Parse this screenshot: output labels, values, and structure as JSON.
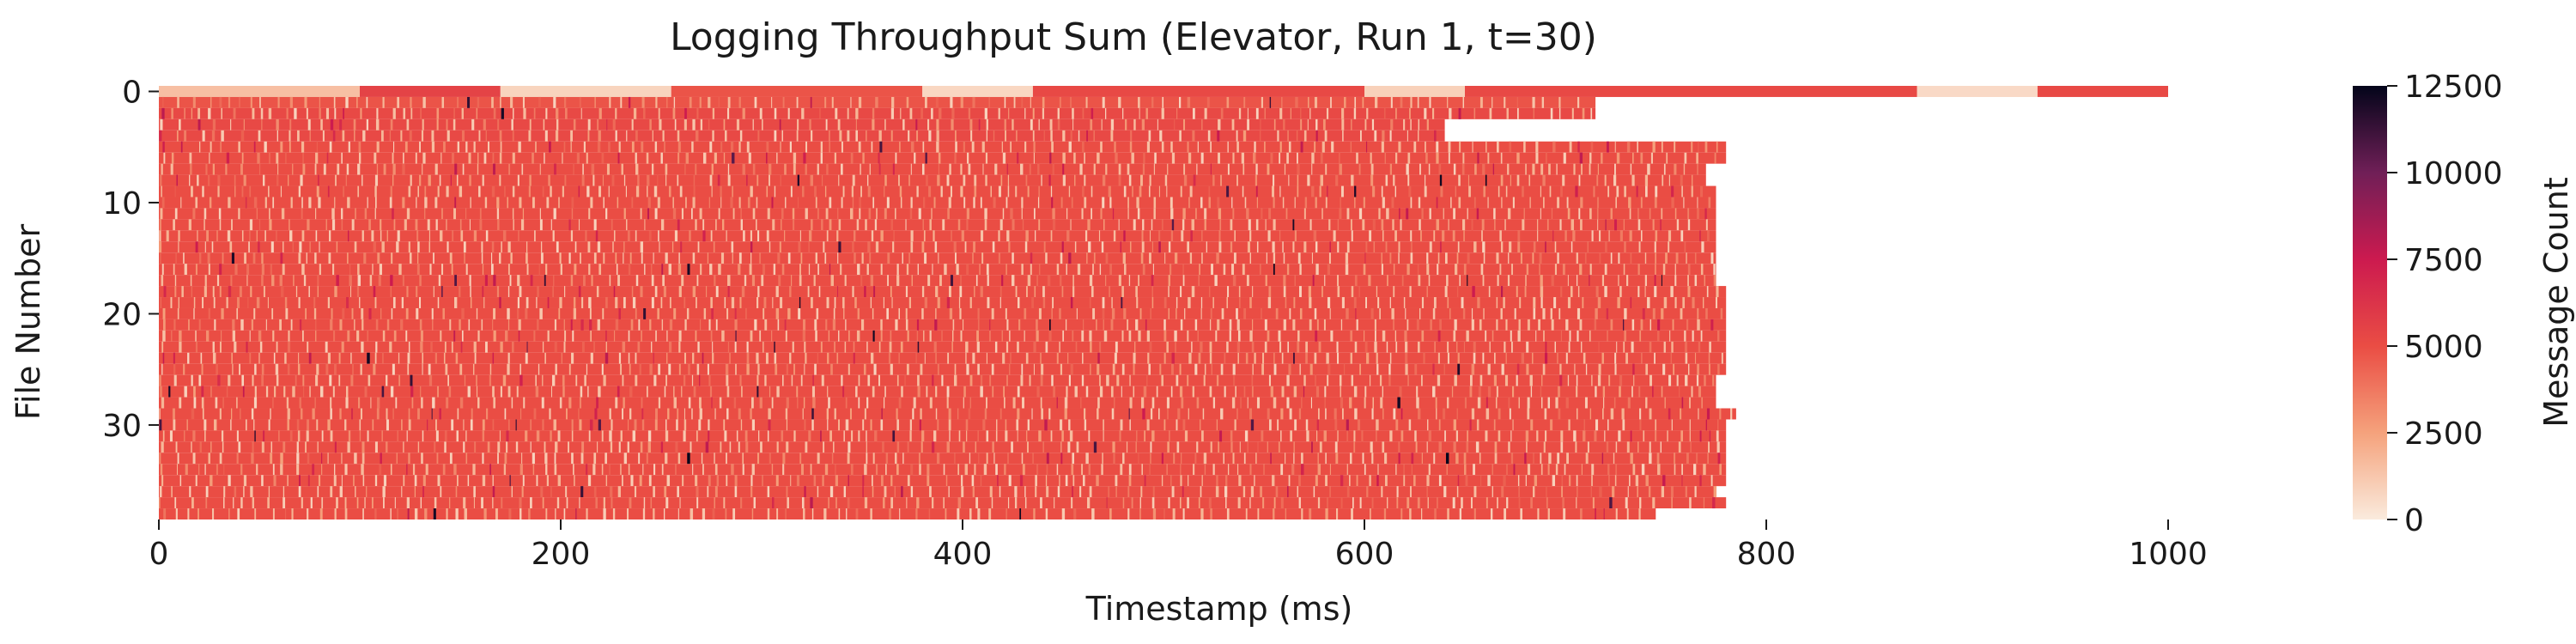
{
  "chart_data": {
    "type": "heatmap",
    "title": "Logging Throughput Sum (Elevator, Run 1, t=30)",
    "xlabel": "Timestamp (ms)",
    "ylabel": "File Number",
    "colorbar_label": "Message Count",
    "xlim": [
      0,
      1000
    ],
    "ylim": [
      0,
      39
    ],
    "x_ticks": [
      0,
      200,
      400,
      600,
      800,
      1000
    ],
    "y_ticks": [
      0,
      10,
      20,
      30
    ],
    "colorbar_ticks": [
      0,
      2500,
      5000,
      7500,
      10000,
      12500
    ],
    "color_range": [
      0,
      12500
    ],
    "grid": false,
    "legend": "colorbar-right",
    "colormap": "rocket_r",
    "rows": [
      {
        "file": 0,
        "end_ms": 1000,
        "typical_count": 2000
      },
      {
        "file": 1,
        "end_ms": 715,
        "typical_count": 4800
      },
      {
        "file": 2,
        "end_ms": 715,
        "typical_count": 5200
      },
      {
        "file": 3,
        "end_ms": 640,
        "typical_count": 5200
      },
      {
        "file": 4,
        "end_ms": 640,
        "typical_count": 5200
      },
      {
        "file": 5,
        "end_ms": 780,
        "typical_count": 5000
      },
      {
        "file": 6,
        "end_ms": 780,
        "typical_count": 5000
      },
      {
        "file": 7,
        "end_ms": 770,
        "typical_count": 5000
      },
      {
        "file": 8,
        "end_ms": 770,
        "typical_count": 5000
      },
      {
        "file": 9,
        "end_ms": 775,
        "typical_count": 5000
      },
      {
        "file": 10,
        "end_ms": 775,
        "typical_count": 5000
      },
      {
        "file": 11,
        "end_ms": 775,
        "typical_count": 5000
      },
      {
        "file": 12,
        "end_ms": 775,
        "typical_count": 5000
      },
      {
        "file": 13,
        "end_ms": 775,
        "typical_count": 5000
      },
      {
        "file": 14,
        "end_ms": 775,
        "typical_count": 5000
      },
      {
        "file": 15,
        "end_ms": 775,
        "typical_count": 5000
      },
      {
        "file": 16,
        "end_ms": 775,
        "typical_count": 5000
      },
      {
        "file": 17,
        "end_ms": 775,
        "typical_count": 5000
      },
      {
        "file": 18,
        "end_ms": 780,
        "typical_count": 5000
      },
      {
        "file": 19,
        "end_ms": 780,
        "typical_count": 5000
      },
      {
        "file": 20,
        "end_ms": 780,
        "typical_count": 5000
      },
      {
        "file": 21,
        "end_ms": 780,
        "typical_count": 5000
      },
      {
        "file": 22,
        "end_ms": 780,
        "typical_count": 5000
      },
      {
        "file": 23,
        "end_ms": 780,
        "typical_count": 5000
      },
      {
        "file": 24,
        "end_ms": 780,
        "typical_count": 5000
      },
      {
        "file": 25,
        "end_ms": 780,
        "typical_count": 5000
      },
      {
        "file": 26,
        "end_ms": 775,
        "typical_count": 5000
      },
      {
        "file": 27,
        "end_ms": 775,
        "typical_count": 5000
      },
      {
        "file": 28,
        "end_ms": 775,
        "typical_count": 5000
      },
      {
        "file": 29,
        "end_ms": 785,
        "typical_count": 5000
      },
      {
        "file": 30,
        "end_ms": 780,
        "typical_count": 5000
      },
      {
        "file": 31,
        "end_ms": 780,
        "typical_count": 5000
      },
      {
        "file": 32,
        "end_ms": 780,
        "typical_count": 5000
      },
      {
        "file": 33,
        "end_ms": 780,
        "typical_count": 5000
      },
      {
        "file": 34,
        "end_ms": 780,
        "typical_count": 5000
      },
      {
        "file": 35,
        "end_ms": 780,
        "typical_count": 5000
      },
      {
        "file": 36,
        "end_ms": 775,
        "typical_count": 5000
      },
      {
        "file": 37,
        "end_ms": 780,
        "typical_count": 5000
      },
      {
        "file": 38,
        "end_ms": 745,
        "typical_count": 5000
      }
    ],
    "row0_segments": [
      {
        "start_ms": 0,
        "end_ms": 100,
        "count": 1500
      },
      {
        "start_ms": 100,
        "end_ms": 170,
        "count": 5500
      },
      {
        "start_ms": 170,
        "end_ms": 255,
        "count": 800
      },
      {
        "start_ms": 255,
        "end_ms": 380,
        "count": 4800
      },
      {
        "start_ms": 380,
        "end_ms": 435,
        "count": 700
      },
      {
        "start_ms": 435,
        "end_ms": 600,
        "count": 5200
      },
      {
        "start_ms": 600,
        "end_ms": 650,
        "count": 900
      },
      {
        "start_ms": 650,
        "end_ms": 875,
        "count": 5200
      },
      {
        "start_ms": 875,
        "end_ms": 935,
        "count": 600
      },
      {
        "start_ms": 935,
        "end_ms": 1000,
        "count": 5200
      }
    ]
  }
}
